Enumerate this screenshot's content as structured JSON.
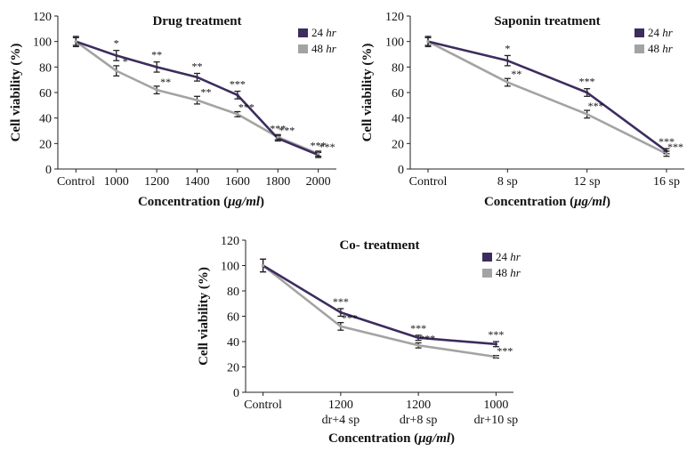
{
  "chart_data": [
    {
      "type": "line",
      "title": "Drug treatment",
      "xlabel_prefix": "Concentration (",
      "xlabel_unit": "μg/ml",
      "xlabel_suffix": ")",
      "ylabel": "Cell viability (%)",
      "ylim": [
        0,
        120
      ],
      "yticks": [
        0,
        20,
        40,
        60,
        80,
        100,
        120
      ],
      "categories": [
        [
          "Control"
        ],
        [
          "1000"
        ],
        [
          "1200"
        ],
        [
          "1400"
        ],
        [
          "1600"
        ],
        [
          "1800"
        ],
        [
          "2000"
        ]
      ],
      "legend_position": "top-right",
      "grid": false,
      "series": [
        {
          "name_prefix": "24 ",
          "name_unit": "hr",
          "color": "#3d2c5e",
          "values": [
            100,
            89,
            80,
            72,
            58,
            24,
            11
          ],
          "errors": [
            4,
            4,
            4,
            3,
            3,
            2,
            2
          ],
          "significance": [
            "",
            "*",
            "**",
            "**",
            "***",
            "***",
            "***"
          ]
        },
        {
          "name_prefix": "48 ",
          "name_unit": "hr",
          "color": "#a3a3a3",
          "values": [
            100,
            77,
            62,
            54,
            43,
            25,
            12
          ],
          "errors": [
            3,
            4,
            3,
            3,
            2,
            2,
            2
          ],
          "significance": [
            "",
            "*",
            "**",
            "**",
            "***",
            "***",
            "***"
          ]
        }
      ]
    },
    {
      "type": "line",
      "title": "Saponin treatment",
      "xlabel_prefix": "Concentration (",
      "xlabel_unit": "μg/ml",
      "xlabel_suffix": ")",
      "ylabel": "Cell viability (%)",
      "ylim": [
        0,
        120
      ],
      "yticks": [
        0,
        20,
        40,
        60,
        80,
        100,
        120
      ],
      "categories": [
        [
          "Control"
        ],
        [
          "8 sp"
        ],
        [
          "12 sp"
        ],
        [
          "16 sp"
        ]
      ],
      "legend_position": "top-right",
      "grid": false,
      "series": [
        {
          "name_prefix": "24 ",
          "name_unit": "hr",
          "color": "#3d2c5e",
          "values": [
            100,
            85,
            60,
            14
          ],
          "errors": [
            4,
            4,
            3,
            2
          ],
          "significance": [
            "",
            "*",
            "***",
            "***"
          ]
        },
        {
          "name_prefix": "48 ",
          "name_unit": "hr",
          "color": "#a3a3a3",
          "values": [
            100,
            68,
            43,
            12
          ],
          "errors": [
            3,
            3,
            3,
            2
          ],
          "significance": [
            "",
            "**",
            "***",
            "***"
          ]
        }
      ]
    },
    {
      "type": "line",
      "title": "Co- treatment",
      "xlabel_prefix": "Concentration (",
      "xlabel_unit": "μg/ml",
      "xlabel_suffix": ")",
      "ylabel": "Cell viability (%)",
      "ylim": [
        0,
        120
      ],
      "yticks": [
        0,
        20,
        40,
        60,
        80,
        100,
        120
      ],
      "categories": [
        [
          "Control"
        ],
        [
          "1200",
          "dr+4 sp"
        ],
        [
          "1200",
          "dr+8 sp"
        ],
        [
          "1000",
          "dr+10 sp"
        ]
      ],
      "legend_position": "top-right",
      "grid": false,
      "series": [
        {
          "name_prefix": "24 ",
          "name_unit": "hr",
          "color": "#3d2c5e",
          "values": [
            100,
            63,
            43,
            38
          ],
          "errors": [
            5,
            3,
            2,
            2
          ],
          "significance": [
            "",
            "***",
            "***",
            "***"
          ]
        },
        {
          "name_prefix": "48 ",
          "name_unit": "hr",
          "color": "#a3a3a3",
          "values": [
            100,
            52,
            37,
            28
          ],
          "errors": [
            5,
            3,
            2,
            1
          ],
          "significance": [
            "",
            "***",
            "***",
            "***"
          ]
        }
      ]
    }
  ]
}
